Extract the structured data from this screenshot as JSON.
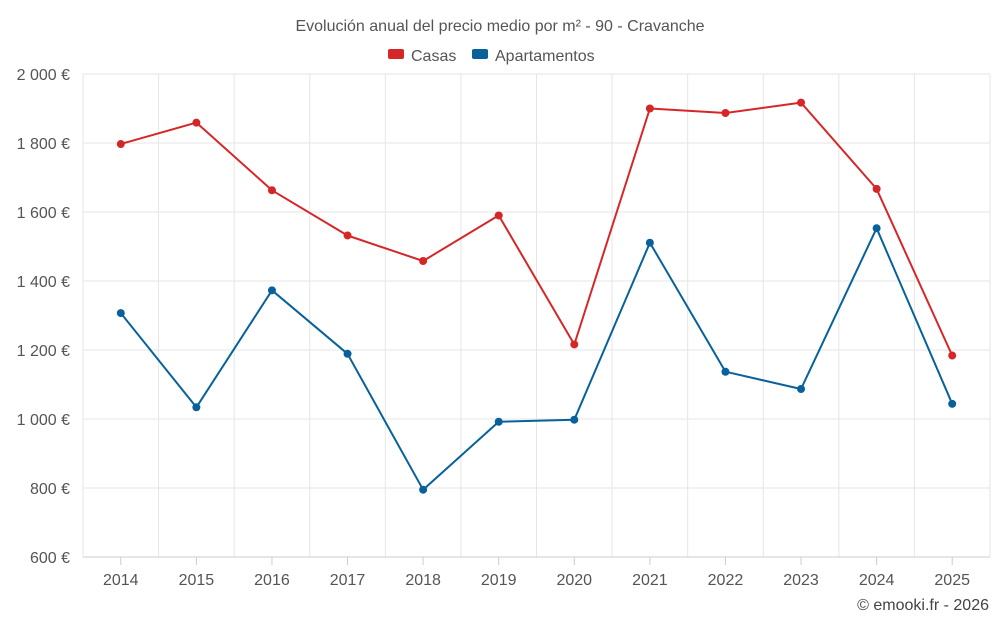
{
  "chart_data": {
    "type": "line",
    "title": "Evolución anual del precio medio por m² - 90 - Cravanche",
    "categories": [
      "2014",
      "2015",
      "2016",
      "2017",
      "2018",
      "2019",
      "2020",
      "2021",
      "2022",
      "2023",
      "2024",
      "2025"
    ],
    "series": [
      {
        "name": "Casas",
        "color": "#d62728",
        "values": [
          1797,
          1859,
          1663,
          1532,
          1458,
          1590,
          1216,
          1900,
          1887,
          1917,
          1667,
          1184
        ]
      },
      {
        "name": "Apartamentos",
        "color": "#08619a",
        "values": [
          1307,
          1034,
          1373,
          1189,
          795,
          992,
          998,
          1511,
          1137,
          1087,
          1553,
          1044
        ]
      }
    ],
    "ylim": [
      600,
      2000
    ],
    "yticks": [
      600,
      800,
      1000,
      1200,
      1400,
      1600,
      1800,
      2000
    ],
    "ytick_labels": [
      "600 €",
      "800 €",
      "1 000 €",
      "1 200 €",
      "1 400 €",
      "1 600 €",
      "1 800 €",
      "2 000 €"
    ],
    "grid": true,
    "legend_position": "top-center"
  },
  "credit": "© emooki.fr - 2026"
}
